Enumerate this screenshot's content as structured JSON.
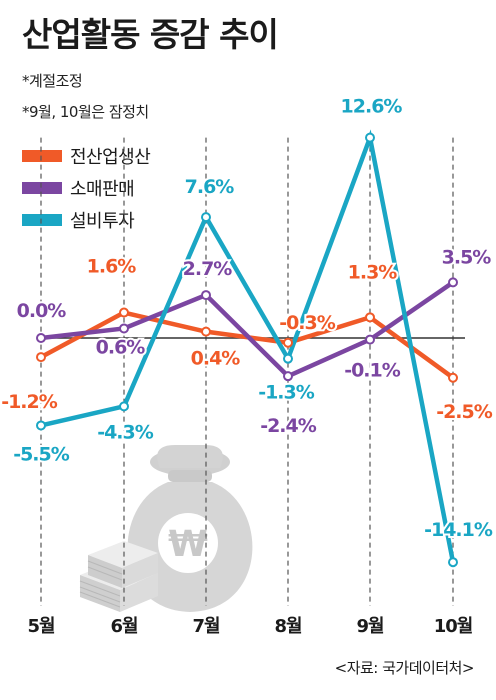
{
  "title": "산업활동 증감 추이",
  "notes": [
    "*계절조정",
    "*9월, 10월은 잠정치"
  ],
  "source": "<자료: 국가데이터처>",
  "colors": {
    "전산업생산": "#f05a28",
    "소매판매": "#7b46a1",
    "설비투자": "#1aa6c4",
    "baseline": "#333333",
    "grid": "#555555"
  },
  "icon": "money-bag-and-cash-stack-icon",
  "currency_symbol": "₩",
  "chart_data": {
    "type": "line",
    "categories": [
      "5월",
      "6월",
      "7월",
      "8월",
      "9월",
      "10월"
    ],
    "series": [
      {
        "name": "전산업생산",
        "values": [
          -1.2,
          1.6,
          0.4,
          -0.3,
          1.3,
          -2.5
        ],
        "labels": [
          "-1.2%",
          "1.6%",
          "0.4%",
          "-0.3%",
          "1.3%",
          "-2.5%"
        ]
      },
      {
        "name": "소매판매",
        "values": [
          0.0,
          0.6,
          2.7,
          -2.4,
          -0.1,
          3.5
        ],
        "labels": [
          "0.0%",
          "0.6%",
          "2.7%",
          "-2.4%",
          "-0.1%",
          "3.5%"
        ]
      },
      {
        "name": "설비투자",
        "values": [
          -5.5,
          -4.3,
          7.6,
          -1.3,
          12.6,
          -14.1
        ],
        "labels": [
          "-5.5%",
          "-4.3%",
          "7.6%",
          "-1.3%",
          "12.6%",
          "-14.1%"
        ]
      }
    ],
    "baseline": 0,
    "grid": "dashed vertical lines at each month",
    "legend": "top-left",
    "ylim": [
      -14.1,
      12.6
    ]
  }
}
